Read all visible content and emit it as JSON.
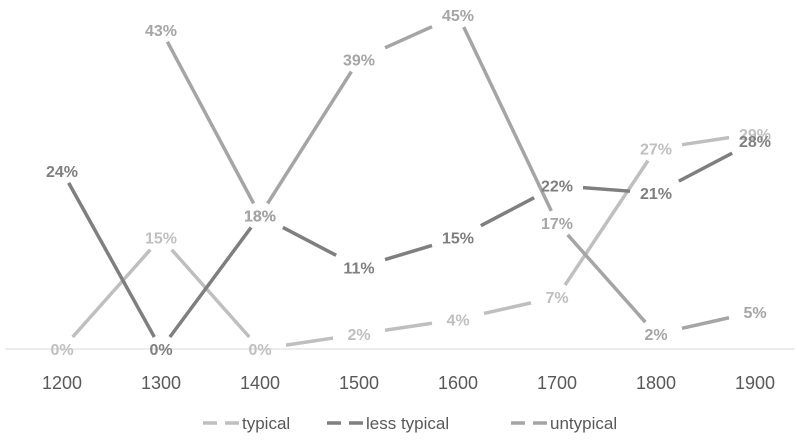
{
  "chart_data": {
    "type": "line",
    "title": "",
    "xlabel": "",
    "ylabel": "",
    "categories": [
      "1200",
      "1300",
      "1400",
      "1500",
      "1600",
      "1700",
      "1800",
      "1900"
    ],
    "ylim": [
      0,
      45
    ],
    "grid": false,
    "legend_position": "bottom",
    "series": [
      {
        "name": "typical",
        "color": "#bfbfbf",
        "values": [
          0,
          15,
          0,
          2,
          4,
          7,
          27,
          29
        ],
        "labels": [
          "0%",
          "15%",
          "0%",
          "2%",
          "4%",
          "7%",
          "27%",
          "29%"
        ]
      },
      {
        "name": "less typical",
        "color": "#7f7f7f",
        "values": [
          24,
          0,
          18,
          11,
          15,
          22,
          21,
          28
        ],
        "labels": [
          "24%",
          "0%",
          "18%",
          "11%",
          "15%",
          "22%",
          "21%",
          "28%"
        ]
      },
      {
        "name": "untypical",
        "color": "#a5a5a5",
        "values": [
          null,
          43,
          18,
          39,
          45,
          17,
          2,
          5
        ],
        "labels": [
          "",
          "43%",
          "18%",
          "39%",
          "45%",
          "17%",
          "2%",
          "5%"
        ]
      }
    ]
  }
}
